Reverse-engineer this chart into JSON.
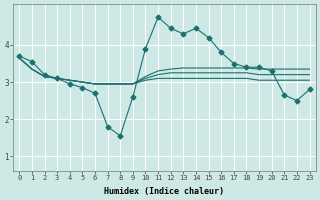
{
  "xlabel": "Humidex (Indice chaleur)",
  "bg_color": "#cde8e5",
  "line_color": "#1a7070",
  "grid_color": "#ffffff",
  "line_main_x": [
    0,
    1,
    2,
    3,
    4,
    5,
    6,
    7,
    8,
    9,
    10,
    11,
    12,
    13,
    14,
    15,
    16,
    17,
    18,
    19,
    20,
    21,
    22,
    23
  ],
  "line_main_y": [
    3.7,
    3.55,
    3.2,
    3.1,
    2.95,
    2.85,
    2.7,
    1.8,
    1.55,
    2.6,
    3.9,
    4.75,
    4.45,
    4.3,
    4.45,
    4.2,
    3.8,
    3.5,
    3.4,
    3.4,
    3.3,
    2.65,
    2.5,
    2.8
  ],
  "line_a_x": [
    0,
    1,
    2,
    3,
    4,
    5,
    6,
    7,
    8,
    9,
    10,
    11,
    12,
    13,
    14,
    15,
    16,
    17,
    18,
    19,
    20,
    21,
    22,
    23
  ],
  "line_a_y": [
    3.65,
    3.35,
    3.15,
    3.1,
    3.05,
    3.0,
    2.95,
    2.95,
    2.95,
    2.95,
    3.05,
    3.1,
    3.1,
    3.1,
    3.1,
    3.1,
    3.1,
    3.1,
    3.1,
    3.05,
    3.05,
    3.05,
    3.05,
    3.05
  ],
  "line_b_x": [
    0,
    1,
    2,
    3,
    4,
    5,
    6,
    7,
    8,
    9,
    10,
    11,
    12,
    13,
    14,
    15,
    16,
    17,
    18,
    19,
    20,
    21,
    22,
    23
  ],
  "line_b_y": [
    3.65,
    3.35,
    3.15,
    3.1,
    3.05,
    3.0,
    2.95,
    2.95,
    2.95,
    2.95,
    3.1,
    3.2,
    3.25,
    3.25,
    3.25,
    3.25,
    3.25,
    3.25,
    3.25,
    3.2,
    3.2,
    3.2,
    3.2,
    3.2
  ],
  "line_c_x": [
    0,
    1,
    2,
    3,
    4,
    5,
    6,
    7,
    8,
    9,
    10,
    11,
    12,
    13,
    14,
    15,
    16,
    17,
    18,
    19,
    20,
    21,
    22,
    23
  ],
  "line_c_y": [
    3.65,
    3.35,
    3.15,
    3.1,
    3.05,
    3.0,
    2.95,
    2.95,
    2.95,
    2.95,
    3.15,
    3.3,
    3.35,
    3.38,
    3.38,
    3.38,
    3.38,
    3.38,
    3.38,
    3.35,
    3.35,
    3.35,
    3.35,
    3.35
  ],
  "xlim": [
    -0.5,
    23.5
  ],
  "ylim": [
    0.6,
    5.1
  ],
  "yticks": [
    1,
    2,
    3,
    4
  ],
  "xticks": [
    0,
    1,
    2,
    3,
    4,
    5,
    6,
    7,
    8,
    9,
    10,
    11,
    12,
    13,
    14,
    15,
    16,
    17,
    18,
    19,
    20,
    21,
    22,
    23
  ],
  "tick_fontsize": 5.0,
  "xlabel_fontsize": 6.0
}
